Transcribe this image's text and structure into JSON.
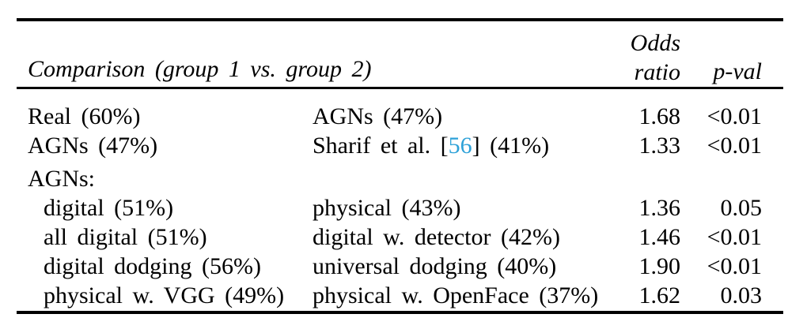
{
  "page": {
    "background_color": "#ffffff",
    "text_color": "#000000"
  },
  "table": {
    "header": {
      "comparison": "Comparison (group 1 vs. group 2)",
      "odds_line1": "Odds",
      "odds_line2": "ratio",
      "pval": "p-val"
    },
    "rows": [
      {
        "group1": "Real (60%)",
        "group2": "AGNs (47%)",
        "odds_ratio": "1.68",
        "p_val": "<0.01"
      },
      {
        "group1": "AGNs (47%)",
        "group2_prefix": "Sharif et al. [",
        "group2_cite": "56",
        "group2_suffix": "] (41%)",
        "odds_ratio": "1.33",
        "p_val": "<0.01"
      }
    ],
    "section_label": "AGNs:",
    "sub_rows": [
      {
        "group1": "digital (51%)",
        "group2": "physical (43%)",
        "odds_ratio": "1.36",
        "p_val": "0.05"
      },
      {
        "group1": "all digital (51%)",
        "group2": "digital w. detector (42%)",
        "odds_ratio": "1.46",
        "p_val": "<0.01"
      },
      {
        "group1": "digital dodging (56%)",
        "group2": "universal dodging (40%)",
        "odds_ratio": "1.90",
        "p_val": "<0.01"
      },
      {
        "group1": "physical w. VGG (49%)",
        "group2": "physical w. OpenFace (37%)",
        "odds_ratio": "1.62",
        "p_val": "0.03"
      }
    ],
    "citation_color": "#2da1d8"
  }
}
